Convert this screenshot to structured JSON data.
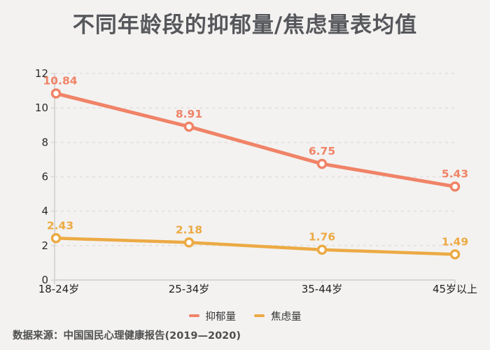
{
  "page": {
    "title": "不同年龄段的抑郁量/焦虑量表均值",
    "source_note": "数据来源：中国国民心理健康报告(2019—2020)"
  },
  "colors": {
    "background": "#F3F2F1",
    "title_text": "#56575B",
    "axis_line": "#D8D6D3",
    "gridline": "#E5E3E0",
    "tick_label": "#2A2A2A",
    "x_label": "#1F1F1F",
    "legend_text": "#333333",
    "source_text": "#4F4F4F",
    "depression_series": "#F08367",
    "anxiety_series": "#ECAA44"
  },
  "chart_data": {
    "type": "line",
    "title": "不同年龄段的抑郁量/焦虑量表均值",
    "categories": [
      "18-24岁",
      "25-34岁",
      "35-44岁",
      "45岁以上"
    ],
    "series": [
      {
        "key": "depression",
        "name": "抑郁量",
        "color": "#F08367",
        "values": [
          10.84,
          8.91,
          6.75,
          5.43
        ]
      },
      {
        "key": "anxiety",
        "name": "焦虑量",
        "color": "#ECAA44",
        "values": [
          2.43,
          2.18,
          1.76,
          1.49
        ]
      }
    ],
    "xlabel": "",
    "ylabel": "",
    "ylim": [
      0,
      12
    ],
    "ytick_step": 2,
    "grid": "horizontal-dashed",
    "legend_position": "bottom",
    "marker": "open-circle",
    "data_labels": true
  }
}
